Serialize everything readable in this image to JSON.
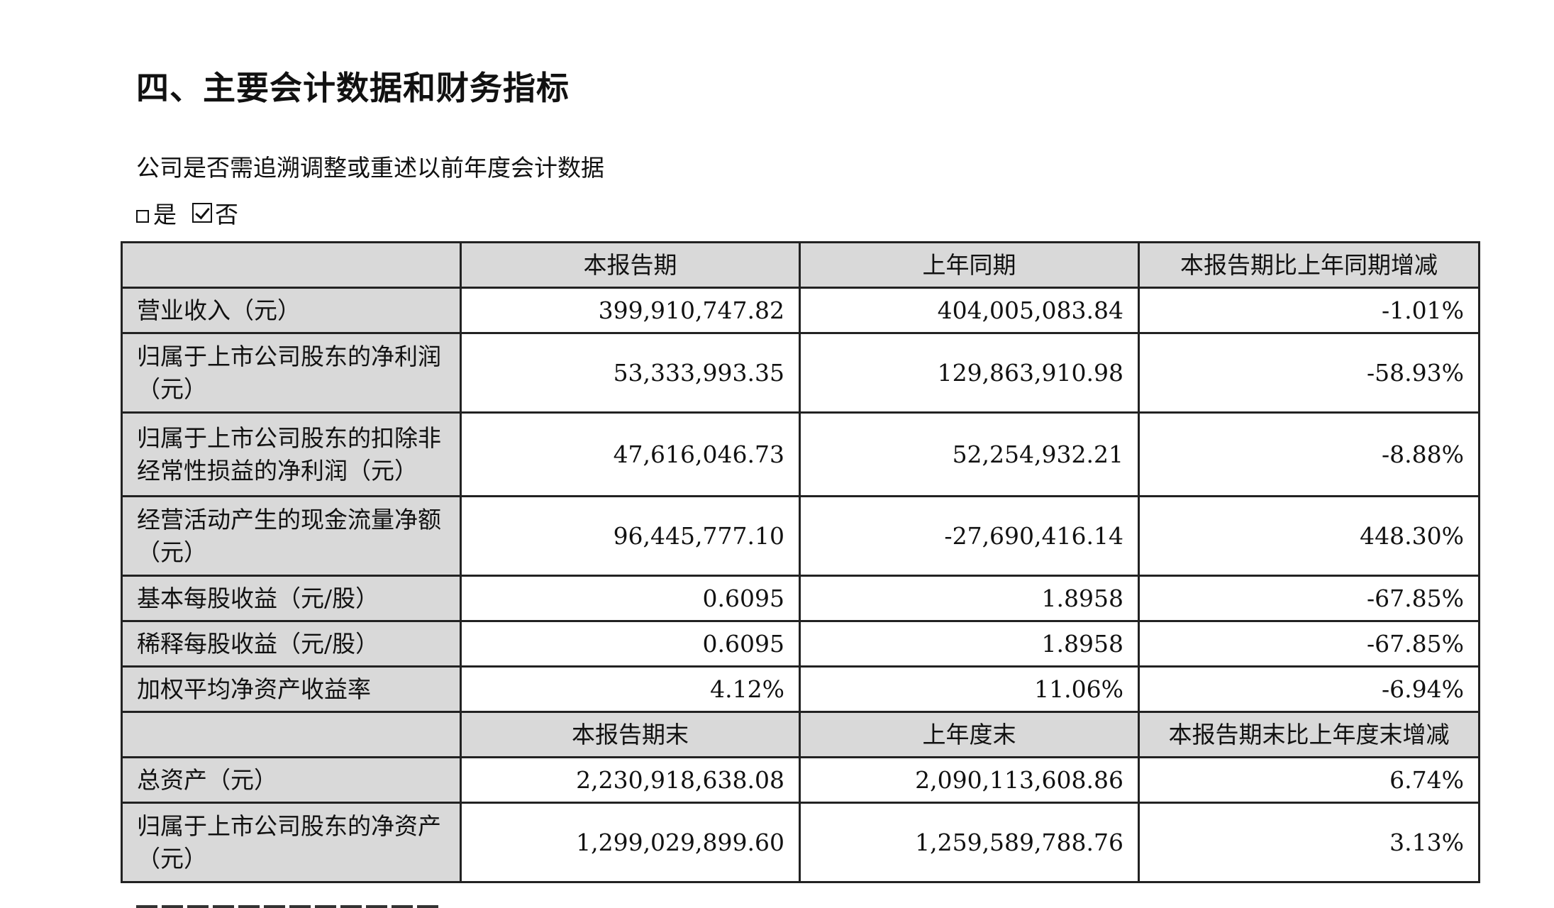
{
  "heading": "四、主要会计数据和财务指标",
  "question": "公司是否需追溯调整或重述以前年度会计数据",
  "options": {
    "yes_label": "是",
    "no_label": "否",
    "selected": "否"
  },
  "table": {
    "header1": [
      "",
      "本报告期",
      "上年同期",
      "本报告期比上年同期增减"
    ],
    "rows1": [
      {
        "label": "营业收入（元）",
        "current": "399,910,747.82",
        "prior": "404,005,083.84",
        "change": "-1.01%"
      },
      {
        "label": "归属于上市公司股东的净利润（元）",
        "current": "53,333,993.35",
        "prior": "129,863,910.98",
        "change": "-58.93%"
      },
      {
        "label": "归属于上市公司股东的扣除非经常性损益的净利润（元）",
        "current": "47,616,046.73",
        "prior": "52,254,932.21",
        "change": "-8.88%"
      },
      {
        "label": "经营活动产生的现金流量净额（元）",
        "current": "96,445,777.10",
        "prior": "-27,690,416.14",
        "change": "448.30%"
      },
      {
        "label": "基本每股收益（元/股）",
        "current": "0.6095",
        "prior": "1.8958",
        "change": "-67.85%"
      },
      {
        "label": "稀释每股收益（元/股）",
        "current": "0.6095",
        "prior": "1.8958",
        "change": "-67.85%"
      },
      {
        "label": "加权平均净资产收益率",
        "current": "4.12%",
        "prior": "11.06%",
        "change": "-6.94%"
      }
    ],
    "header2": [
      "",
      "本报告期末",
      "上年度末",
      "本报告期末比上年度末增减"
    ],
    "rows2": [
      {
        "label": "总资产（元）",
        "current": "2,230,918,638.08",
        "prior": "2,090,113,608.86",
        "change": "6.74%"
      },
      {
        "label": "归属于上市公司股东的净资产（元）",
        "current": "1,299,029,899.60",
        "prior": "1,259,589,788.76",
        "change": "3.13%"
      }
    ]
  }
}
